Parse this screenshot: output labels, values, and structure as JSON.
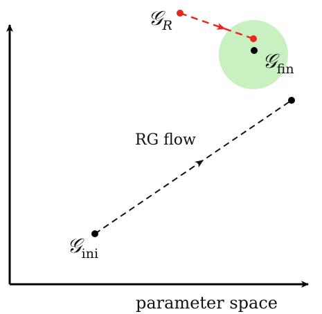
{
  "diagram": {
    "axis_label": "parameter space",
    "flow_label": "RG flow",
    "points": {
      "initial": {
        "symbol": "𝒢",
        "subscript": "ini"
      },
      "final": {
        "symbol": "𝒢",
        "subscript": "fin"
      },
      "reconstructed": {
        "symbol": "𝒢",
        "subscript": "R"
      }
    },
    "colors": {
      "axis": "#000000",
      "flow_line": "#000000",
      "reconstructed": "#e8281e",
      "neighborhood": "#c8f0c0"
    }
  }
}
